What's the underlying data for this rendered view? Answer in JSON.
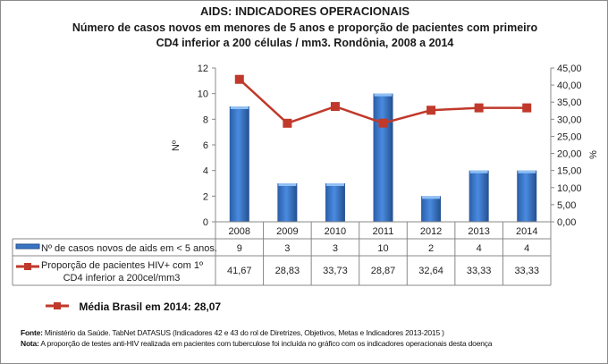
{
  "title": "AIDS: INDICADORES OPERACIONAIS",
  "subtitle_line1": "Número de casos novos em menores de 5 anos e proporção de pacientes com primeiro",
  "subtitle_line2": "CD4 inferior a 200 células / mm3. Rondônia, 2008 a 2014",
  "footer": {
    "fonte_label": "Fonte:",
    "fonte_text": " Ministério da Saúde. TabNet DATASUS (Indicadores 42 e 43 do rol de Diretrizes, Objetivos, Metas e Indicadores 2013-2015 )",
    "nota_label": "Nota:",
    "nota_text": " A proporção de testes anti-HIV realizada em pacientes com tuberculose foi incluída no gráfico com os indicadores operacionais desta doença"
  },
  "media_brasil": "Média Brasil em 2014: 28,07",
  "chart_data": {
    "type": "bar+line",
    "categories": [
      "2008",
      "2009",
      "2010",
      "2011",
      "2012",
      "2013",
      "2014"
    ],
    "ylabel_left": "Nº",
    "ylabel_right": "%",
    "ylim_left": [
      0,
      12
    ],
    "yticks_left": [
      "0",
      "2",
      "4",
      "6",
      "8",
      "10",
      "12"
    ],
    "ylim_right": [
      0,
      45
    ],
    "yticks_right": [
      "0,00",
      "5,00",
      "10,00",
      "15,00",
      "20,00",
      "25,00",
      "30,00",
      "35,00",
      "40,00",
      "45,00"
    ],
    "series": [
      {
        "name": "Nº de casos novos de aids em < 5 anos.",
        "type": "bar",
        "axis": "left",
        "color": "#3a75c4",
        "values": [
          9,
          3,
          3,
          10,
          2,
          4,
          4
        ],
        "labels": [
          "9",
          "3",
          "3",
          "10",
          "2",
          "4",
          "4"
        ]
      },
      {
        "name": "Proporção de pacientes HIV+ com 1º CD4 inferior a 200cel/mm3",
        "type": "line",
        "axis": "right",
        "color": "#c0392b",
        "values": [
          41.67,
          28.83,
          33.73,
          28.87,
          32.64,
          33.33,
          33.33
        ],
        "labels": [
          "41,67",
          "28,83",
          "33,73",
          "28,87",
          "32,64",
          "33,33",
          "33,33"
        ]
      }
    ]
  }
}
